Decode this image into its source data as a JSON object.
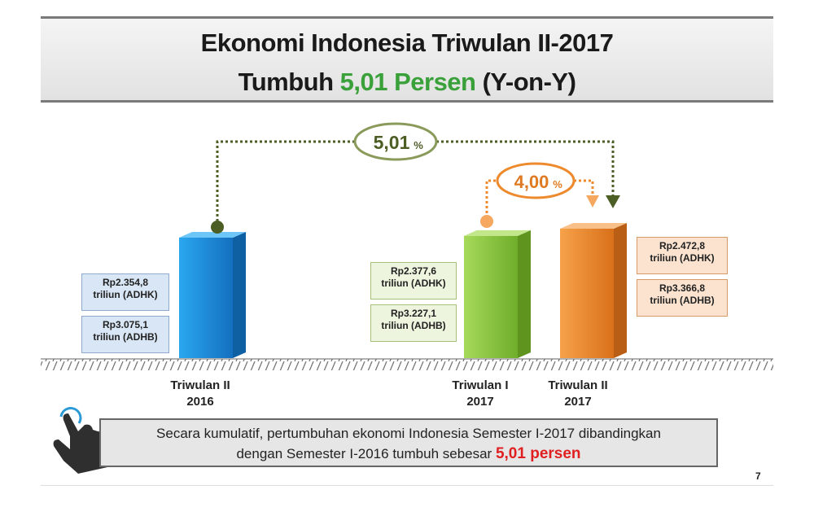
{
  "header": {
    "title_line1": "Ekonomi Indonesia Triwulan II-2017",
    "title_line2_prefix": "Tumbuh ",
    "title_line2_highlight": "5,01 Persen",
    "title_line2_suffix": " (Y-on-Y)"
  },
  "chart_data": {
    "type": "bar",
    "categories": [
      "Triwulan II 2016",
      "Triwulan I 2017",
      "Triwulan II 2017"
    ],
    "values_adhk": [
      2354.8,
      2377.6,
      2472.8
    ],
    "values_adhb": [
      3075.1,
      3227.1,
      3366.8
    ],
    "unit": "triliun",
    "growth_annotations": [
      {
        "from": "Triwulan II 2016",
        "to": "Triwulan II 2017",
        "value": 5.01,
        "label_num": "5,01",
        "label_pct": "%"
      },
      {
        "from": "Triwulan I 2017",
        "to": "Triwulan II 2017",
        "value": 4.0,
        "label_num": "4,00",
        "label_pct": "%"
      }
    ],
    "colors": {
      "blue": "#1e88d6",
      "green": "#8cc63f",
      "orange": "#ee8a2e",
      "dark_green": "#4d5e25"
    }
  },
  "boxes": {
    "q2_2016_adhk": [
      "Rp2.354,8",
      "triliun (ADHK)"
    ],
    "q2_2016_adhb": [
      "Rp3.075,1",
      "triliun (ADHB)"
    ],
    "q1_2017_adhk": [
      "Rp2.377,6",
      "triliun (ADHK)"
    ],
    "q1_2017_adhb": [
      "Rp3.227,1",
      "triliun (ADHB)"
    ],
    "q2_2017_adhk": [
      "Rp2.472,8",
      "triliun (ADHK)"
    ],
    "q2_2017_adhb": [
      "Rp3.366,8",
      "triliun (ADHB)"
    ]
  },
  "xlabels": {
    "q2_2016": [
      "Triwulan II",
      "2016"
    ],
    "q1_2017": [
      "Triwulan I",
      "2017"
    ],
    "q2_2017": [
      "Triwulan II",
      "2017"
    ]
  },
  "note": {
    "line1": "Secara kumulatif, pertumbuhan ekonomi Indonesia Semester I-2017 dibandingkan",
    "line2_prefix": "dengan Semester I-2016 tumbuh sebesar ",
    "line2_highlight": "5,01 persen"
  },
  "icons": {
    "pointer": "hand-pointer-icon"
  },
  "page_number": "7"
}
